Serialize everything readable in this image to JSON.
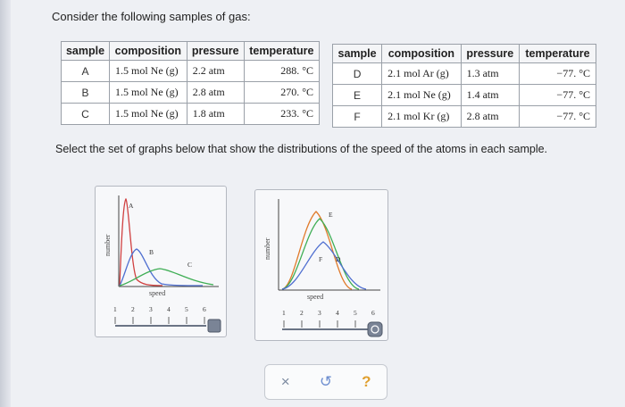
{
  "prompt": "Consider the following samples of gas:",
  "instruction": "Select the set of graphs below that show the distributions of the speed of the atoms in each sample.",
  "table_headers": [
    "sample",
    "composition",
    "pressure",
    "temperature"
  ],
  "table_left": [
    {
      "sample": "A",
      "composition": "1.5 mol Ne (g)",
      "pressure": "2.2 atm",
      "temperature": "288. °C"
    },
    {
      "sample": "B",
      "composition": "1.5 mol Ne (g)",
      "pressure": "2.8 atm",
      "temperature": "270. °C"
    },
    {
      "sample": "C",
      "composition": "1.5 mol Ne (g)",
      "pressure": "1.8 atm",
      "temperature": "233. °C"
    }
  ],
  "table_right": [
    {
      "sample": "D",
      "composition": "2.1 mol Ar (g)",
      "pressure": "1.3 atm",
      "temperature": "−77. °C"
    },
    {
      "sample": "E",
      "composition": "2.1 mol Ne (g)",
      "pressure": "1.4 atm",
      "temperature": "−77. °C"
    },
    {
      "sample": "F",
      "composition": "2.1 mol Kr (g)",
      "pressure": "2.8 atm",
      "temperature": "−77. °C"
    }
  ],
  "graph_1": {
    "ylabel": "number",
    "xlabel": "speed",
    "curve_labels": [
      "A",
      "B",
      "C"
    ],
    "scale_ticks": [
      "1",
      "2",
      "3",
      "4",
      "5",
      "6"
    ],
    "colors": {
      "A": "#d04040",
      "B": "#4f6fd0",
      "C": "#3fae55"
    }
  },
  "graph_2": {
    "ylabel": "number",
    "xlabel": "speed",
    "curve_labels": [
      "D",
      "E",
      "F"
    ],
    "scale_ticks": [
      "1",
      "2",
      "3",
      "4",
      "5",
      "6"
    ],
    "colors": {
      "D": "#4f6fd0",
      "E": "#3fae55",
      "F": "#e07a2a"
    }
  },
  "toolbar": {
    "close": "×",
    "undo": "↺",
    "help": "?"
  }
}
